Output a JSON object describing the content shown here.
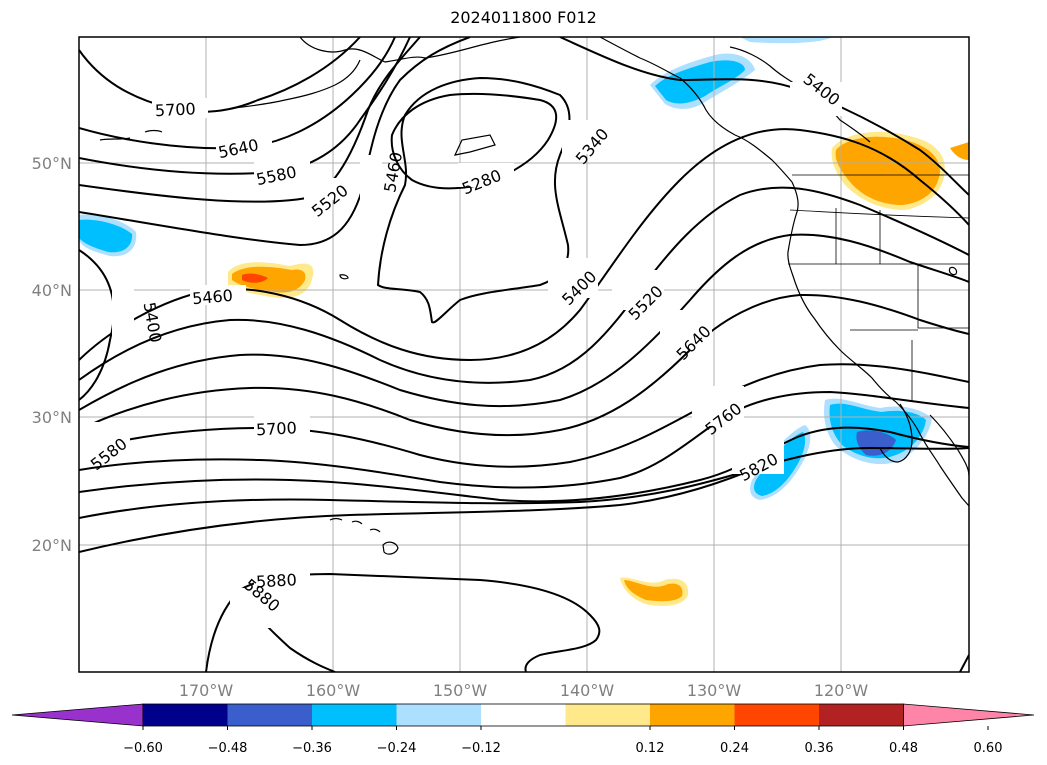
{
  "title": "2024011800 F012",
  "lat_labels": [
    "50°N",
    "40°N",
    "30°N",
    "20°N"
  ],
  "lon_labels": [
    "170°W",
    "160°W",
    "150°W",
    "140°W",
    "130°W",
    "120°W"
  ],
  "contour_labels": {
    "c5700a": "5700",
    "c5640a": "5640",
    "c5580a": "5580",
    "c5520a": "5520",
    "c5460a": "5460",
    "c5280": "5280",
    "c5340": "5340",
    "c5400a": "5400",
    "c5400b": "5400",
    "c5460b": "5460",
    "c5400c": "5400",
    "c5520b": "5520",
    "c5640b": "5640",
    "c5580b": "5580",
    "c5700b": "5700",
    "c5760": "5760",
    "c5820": "5820",
    "c5880a": "5880",
    "c5880b": "5880"
  },
  "colorbar": {
    "ticks": [
      "−0.60",
      "−0.48",
      "−0.36",
      "−0.24",
      "−0.12",
      "0.12",
      "0.24",
      "0.36",
      "0.48",
      "0.60"
    ],
    "colors": [
      "#9932CC",
      "#00008B",
      "#3A5FCD",
      "#00BFFF",
      "#ADDFFF",
      "#FFFFFF",
      "#FFE98A",
      "#FFA500",
      "#FF4500",
      "#B22222",
      "#FF85A8"
    ]
  }
}
